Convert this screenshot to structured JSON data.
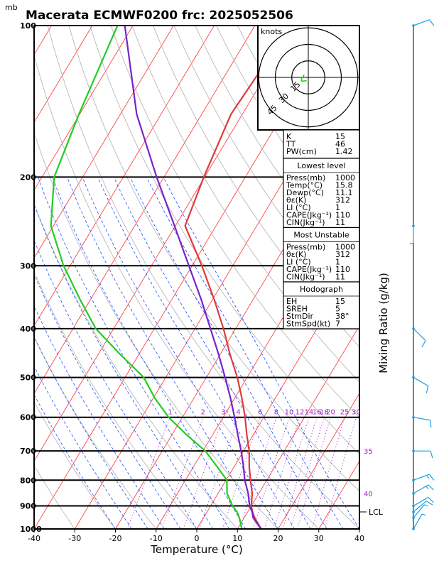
{
  "header": {
    "unit_label": "mb",
    "title": "Macerata ECMWF0200 frc: 2025052506"
  },
  "colors": {
    "temperature": "#e03a3a",
    "dewpoint": "#22cc22",
    "parcel": "#7722cc",
    "isotherm": "#ff3030",
    "dry_adiabat": "#b0b0b0",
    "moist_adiabat": "#2050ff",
    "mixing_ratio": "#a020c8",
    "wind": "#1aa0e0"
  },
  "chart_data": {
    "type": "line",
    "title": "Macerata ECMWF0200 frc: 2025052506",
    "xlabel": "Temperature (°C)",
    "ylabel": "mb",
    "right_label": "Mixing Ratio (g/kg)",
    "xlim": [
      -40,
      40
    ],
    "ylim": [
      1000,
      100
    ],
    "y_scale": "log",
    "x_ticks": [
      "-40",
      "-30",
      "-20",
      "-10",
      "0",
      "10",
      "20",
      "30",
      "40"
    ],
    "x_tick_values": [
      -40,
      -30,
      -20,
      -10,
      0,
      10,
      20,
      30,
      40
    ],
    "y_ticks": [
      "100",
      "200",
      "300",
      "400",
      "500",
      "600",
      "700",
      "800",
      "900",
      "1000"
    ],
    "y_tick_values": [
      100,
      200,
      300,
      400,
      500,
      600,
      700,
      800,
      900,
      1000
    ],
    "mixing_ratio_labels": [
      "1",
      "2",
      "3",
      "4",
      "6",
      "8",
      "10",
      "12",
      "14",
      "16",
      "18",
      "20",
      "25",
      "30"
    ],
    "mixing_ratio_values": [
      1,
      2,
      3,
      4,
      6,
      8,
      10,
      12,
      14,
      16,
      18,
      20,
      25,
      30
    ],
    "theta_labels": [
      {
        "text": "35",
        "p": 700,
        "t": 40
      },
      {
        "text": "40",
        "p": 850,
        "t": 40
      }
    ],
    "lcl_label": "LCL",
    "lcl_pressure": 925,
    "series": [
      {
        "name": "temperature",
        "p": [
          1000,
          950,
          925,
          900,
          850,
          800,
          750,
          700,
          650,
          600,
          550,
          500,
          450,
          400,
          350,
          300,
          250,
          200,
          150,
          100
        ],
        "t": [
          15.8,
          12.6,
          11.2,
          10.0,
          8.4,
          6.0,
          3.6,
          1.4,
          -1.6,
          -4.6,
          -8.2,
          -12.4,
          -17.6,
          -23.0,
          -29.6,
          -37.6,
          -47.6,
          -50.2,
          -52.8,
          -51.2
        ]
      },
      {
        "name": "dewpoint",
        "p": [
          1000,
          950,
          925,
          900,
          850,
          800,
          750,
          700,
          650,
          600,
          550,
          500,
          450,
          400,
          350,
          300,
          250,
          200,
          150,
          100
        ],
        "t": [
          11.1,
          8.8,
          7.4,
          5.4,
          2.2,
          0.2,
          -4.4,
          -9.4,
          -16.4,
          -23.4,
          -29.6,
          -35.4,
          -44.6,
          -54.4,
          -62.6,
          -71.6,
          -80.6,
          -87.0,
          -90.2,
          -93.8
        ]
      },
      {
        "name": "parcel",
        "p": [
          1000,
          950,
          925,
          900,
          850,
          800,
          750,
          700,
          650,
          600,
          550,
          500,
          450,
          400,
          350,
          300,
          250,
          200,
          150,
          100
        ],
        "t": [
          15.8,
          12.2,
          11.1,
          9.6,
          7.4,
          4.6,
          2.2,
          -0.6,
          -3.8,
          -7.2,
          -11.0,
          -15.4,
          -20.4,
          -26.2,
          -32.8,
          -40.8,
          -50.2,
          -61.8,
          -76.0,
          -92.0
        ]
      }
    ],
    "wind_barbs": [
      {
        "p": 1000,
        "dir": 30,
        "spd": 7
      },
      {
        "p": 950,
        "dir": 40,
        "spd": 9
      },
      {
        "p": 925,
        "dir": 50,
        "spd": 12
      },
      {
        "p": 900,
        "dir": 60,
        "spd": 14
      },
      {
        "p": 850,
        "dir": 60,
        "spd": 15
      },
      {
        "p": 800,
        "dir": 70,
        "spd": 15
      },
      {
        "p": 700,
        "dir": 90,
        "spd": 12
      },
      {
        "p": 600,
        "dir": 100,
        "spd": 10
      },
      {
        "p": 500,
        "dir": 120,
        "spd": 10
      },
      {
        "p": 400,
        "dir": 135,
        "spd": 10
      },
      {
        "p": 250,
        "dir": 180,
        "spd": 5
      },
      {
        "p": 100,
        "dir": 70,
        "spd": 10
      }
    ],
    "hodograph": {
      "label": "knots",
      "ring_labels": [
        "15",
        "30",
        "45"
      ],
      "ring_values": [
        15,
        30,
        45
      ]
    }
  },
  "stats": {
    "indices": [
      {
        "label": "K",
        "value": "15"
      },
      {
        "label": "TT",
        "value": "46"
      },
      {
        "label": "PW(cm)",
        "value": "1.42"
      }
    ],
    "lowest_level": {
      "title": "Lowest level",
      "rows": [
        {
          "label": "Press(mb)",
          "value": "1000"
        },
        {
          "label": "Temp(°C)",
          "value": "15.8"
        },
        {
          "label": "Dewp(°C)",
          "value": "11.1"
        },
        {
          "label": "θε(K)",
          "value": "312"
        },
        {
          "label": "LI (°C)",
          "value": "1"
        },
        {
          "label": "CAPE(Jkg⁻¹)",
          "value": "110"
        },
        {
          "label": "CIN(Jkg⁻¹)",
          "value": "11"
        }
      ]
    },
    "most_unstable": {
      "title": "Most Unstable",
      "rows": [
        {
          "label": "Press(mb)",
          "value": "1000"
        },
        {
          "label": "θε(K)",
          "value": "312"
        },
        {
          "label": "LI (°C)",
          "value": "1"
        },
        {
          "label": "CAPE(Jkg⁻¹)",
          "value": "110"
        },
        {
          "label": "CIN(Jkg⁻¹)",
          "value": "11"
        }
      ]
    },
    "hodograph": {
      "title": "Hodograph",
      "rows": [
        {
          "label": "EH",
          "value": "15"
        },
        {
          "label": "SREH",
          "value": "5"
        },
        {
          "label": "StmDir",
          "value": "38°"
        },
        {
          "label": "StmSpd(kt)",
          "value": "7"
        }
      ]
    }
  }
}
